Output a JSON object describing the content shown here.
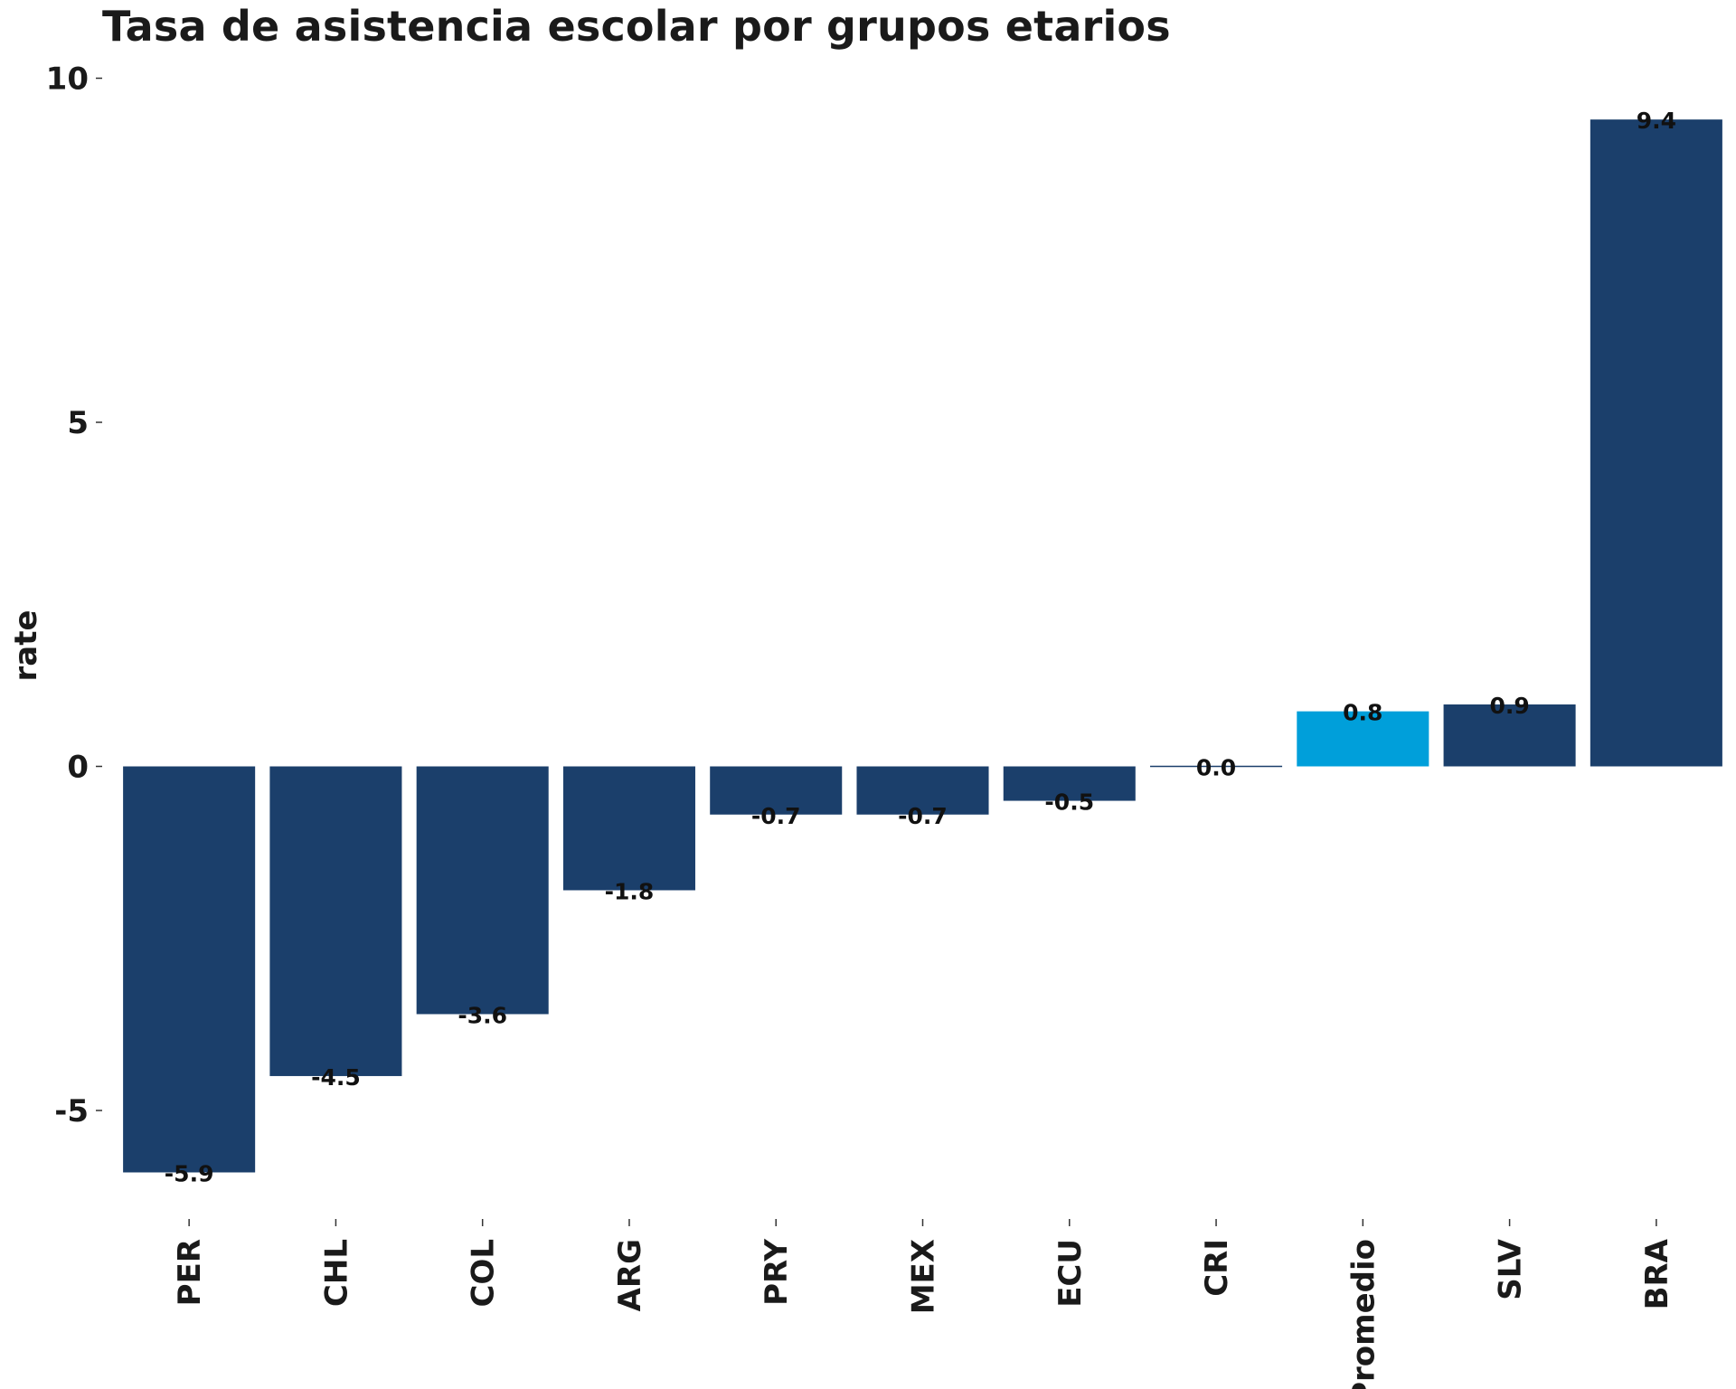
{
  "chart_data": {
    "type": "bar",
    "title": "Tasa de asistencia escolar por grupos etarios",
    "xlabel": "",
    "ylabel": "rate",
    "categories": [
      "PER",
      "CHL",
      "COL",
      "ARG",
      "PRY",
      "MEX",
      "ECU",
      "CRI",
      "Promedio",
      "SLV",
      "BRA"
    ],
    "values": [
      -5.9,
      -4.5,
      -3.6,
      -1.8,
      -0.7,
      -0.7,
      -0.5,
      0.0,
      0.8,
      0.9,
      9.4
    ],
    "labels": [
      "-5.9",
      "-4.5",
      "-3.6",
      "-1.8",
      "-0.7",
      "-0.7",
      "-0.5",
      "0.0",
      "0.8",
      "0.9",
      "9.4"
    ],
    "yticks": [
      -5,
      0,
      5,
      10
    ],
    "ytick_labels": [
      "-5",
      "0",
      "5",
      "10"
    ],
    "ylim": [
      -6.6,
      10
    ],
    "grid": false,
    "colors": {
      "default": "#1B3F6B",
      "highlight": "#009FDA"
    },
    "highlight_category": "Promedio"
  }
}
